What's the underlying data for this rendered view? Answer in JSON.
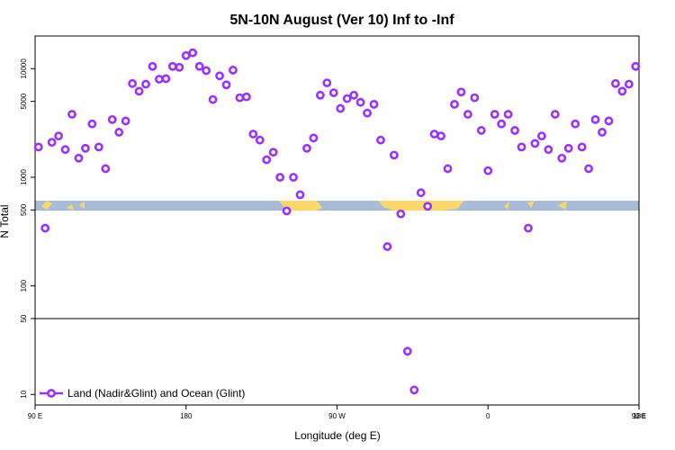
{
  "chart_data": {
    "type": "scatter",
    "title": "5N-10N August (Ver 10)   Inf to -Inf",
    "xlabel": "Longitude (deg E)",
    "ylabel": "N Total",
    "xlim": [
      90,
      450
    ],
    "x_tick_values": [
      90,
      180,
      270,
      360,
      450,
      540
    ],
    "x_tick_labels": [
      "90 E",
      "180",
      "90 W",
      "0",
      "90 E",
      "180"
    ],
    "y_scale": "log",
    "ylim": [
      8,
      20000
    ],
    "y_tick_values": [
      10,
      50,
      100,
      500,
      1000,
      5000,
      10000
    ],
    "y_tick_labels": [
      "10",
      "50",
      "100",
      "500",
      "1000",
      "5000",
      "10000"
    ],
    "y_break": 50,
    "marker_color": "#9b30ff",
    "ocean_color": "#a7bcd8",
    "land_color": "#fdd868",
    "legend_position": "bottom-left",
    "series": [
      {
        "name": "Land (Nadir&Glint) and Ocean (Glint)",
        "x": [
          92,
          96,
          100,
          104,
          108,
          112,
          116,
          120,
          124,
          128,
          132,
          136,
          140,
          144,
          148,
          152,
          156,
          160,
          164,
          168,
          172,
          176,
          180,
          184,
          188,
          192,
          196,
          200,
          204,
          208,
          212,
          216,
          220,
          224,
          228,
          232,
          236,
          240,
          244,
          248,
          252,
          256,
          260,
          264,
          268,
          272,
          276,
          280,
          284,
          288,
          292,
          296,
          300,
          304,
          308,
          312,
          316,
          320,
          324,
          328,
          332,
          336,
          340,
          344,
          348,
          352,
          356,
          360,
          364,
          368,
          372,
          376,
          380,
          384,
          388,
          392,
          396,
          400,
          404,
          408,
          412,
          416,
          420,
          424,
          428,
          432,
          436,
          440,
          444,
          448
        ],
        "y": [
          1900,
          340,
          2100,
          2400,
          1800,
          3800,
          1500,
          1850,
          3100,
          1900,
          1200,
          3400,
          2600,
          3300,
          7300,
          6200,
          7200,
          10500,
          8000,
          8100,
          10500,
          10300,
          13200,
          14000,
          10500,
          9600,
          5200,
          8600,
          7100,
          9700,
          5400,
          5500,
          2500,
          2200,
          1450,
          1700,
          1000,
          490,
          1000,
          690,
          1850,
          2300,
          5700,
          7400,
          6000,
          4300,
          5300,
          5700,
          4900,
          3900,
          4700,
          2200,
          230,
          1600,
          460,
          25,
          11,
          720,
          540,
          2500,
          2400,
          1200,
          4700,
          6100,
          3800,
          5400,
          2700,
          1150,
          3800,
          3100,
          3800,
          2700,
          1900,
          340,
          2050,
          2400,
          1800,
          3800,
          1500,
          1850,
          3100,
          1900,
          1200,
          3400,
          2600,
          3300,
          7300,
          6200,
          7200,
          10500
        ]
      }
    ]
  }
}
